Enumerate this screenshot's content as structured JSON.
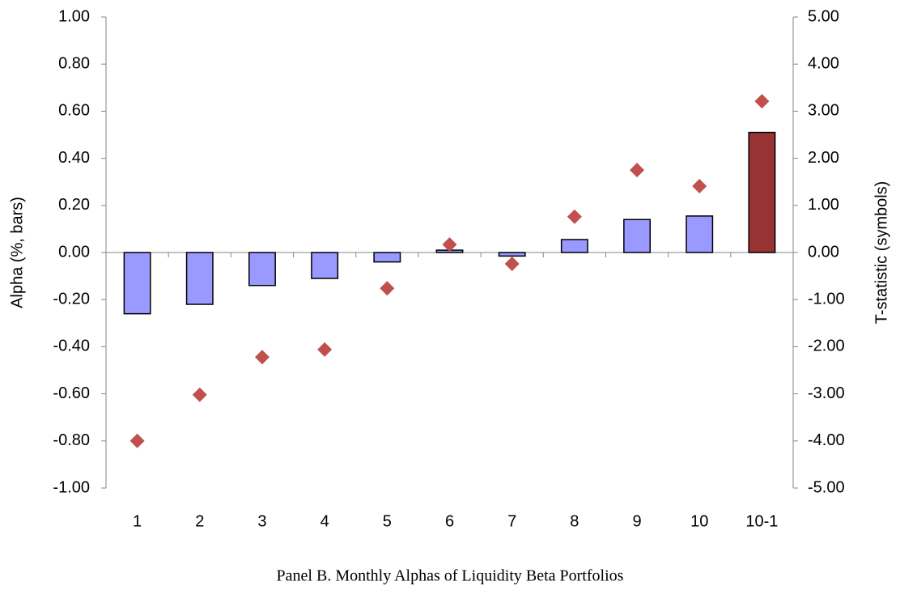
{
  "chart_data": {
    "type": "bar",
    "caption": "Panel B. Monthly Alphas of Liquidity Beta Portfolios",
    "y_label": "Alpha (%, bars)",
    "y2_label": "T-statistic (symbols)",
    "categories": [
      "1",
      "2",
      "3",
      "4",
      "5",
      "6",
      "7",
      "8",
      "9",
      "10",
      "10-1"
    ],
    "series": [
      {
        "type": "bar",
        "color": "#9999ff",
        "colors": [
          "#9999ff",
          "#9999ff",
          "#9999ff",
          "#9999ff",
          "#9999ff",
          "#9999ff",
          "#9999ff",
          "#9999ff",
          "#9999ff",
          "#9999ff",
          "#993333"
        ],
        "values": [
          -0.26,
          -0.22,
          -0.14,
          -0.11,
          -0.04,
          0.01,
          -0.015,
          0.055,
          0.14,
          0.155,
          0.51
        ]
      },
      {
        "type": "scatter",
        "axis": "y2",
        "color": "#c0504d",
        "values": [
          -4.0,
          -3.02,
          -2.22,
          -2.06,
          -0.76,
          0.17,
          -0.24,
          0.76,
          1.75,
          1.41,
          3.21
        ]
      }
    ],
    "ylim": [
      -1,
      1
    ],
    "yticks": [
      {
        "value": -1,
        "label": "-1.00"
      },
      {
        "value": -0.8,
        "label": "-0.80"
      },
      {
        "value": -0.6,
        "label": "-0.60"
      },
      {
        "value": -0.4,
        "label": "-0.40"
      },
      {
        "value": -0.2,
        "label": "-0.20"
      },
      {
        "value": 0,
        "label": "0.00"
      },
      {
        "value": 0.2,
        "label": "0.20"
      },
      {
        "value": 0.4,
        "label": "0.40"
      },
      {
        "value": 0.6,
        "label": "0.60"
      },
      {
        "value": 0.8,
        "label": "0.80"
      },
      {
        "value": 1,
        "label": "1.00"
      }
    ],
    "y2lim": [
      -5,
      5
    ],
    "y2ticks": [
      {
        "value": -5,
        "label": "-5.00"
      },
      {
        "value": -4,
        "label": "-4.00"
      },
      {
        "value": -3,
        "label": "-3.00"
      },
      {
        "value": -2,
        "label": "-2.00"
      },
      {
        "value": -1,
        "label": "-1.00"
      },
      {
        "value": 0,
        "label": "0.00"
      },
      {
        "value": 1,
        "label": "1.00"
      },
      {
        "value": 2,
        "label": "2.00"
      },
      {
        "value": 3,
        "label": "3.00"
      },
      {
        "value": 4,
        "label": "4.00"
      },
      {
        "value": 5,
        "label": "5.00"
      }
    ]
  }
}
